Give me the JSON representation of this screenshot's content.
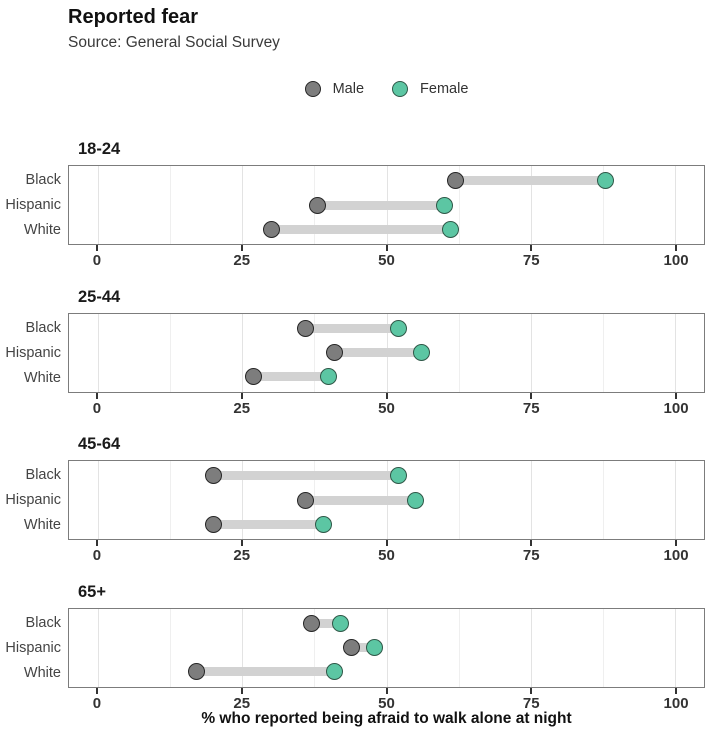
{
  "header": {
    "title": "Reported fear",
    "subtitle": "Source: General Social Survey"
  },
  "colors": {
    "male_fill": "#7d7d7d",
    "male_stroke": "#262626",
    "female_fill": "#5cc6a3",
    "female_stroke": "#2f5848",
    "connector": "#d2d2d2",
    "grid_major": "#e3e3e3",
    "grid_minor": "#efefef",
    "panel_border": "#7c7c7c"
  },
  "chart_data": {
    "type": "scatter",
    "variant": "dumbbell",
    "title": "Reported fear",
    "subtitle": "Source: General Social Survey",
    "xlabel": "% who reported being afraid to walk alone at night",
    "legend_position": "top-center",
    "grid": true,
    "xlim": [
      -5,
      105
    ],
    "x_ticks": [
      0,
      25,
      50,
      75,
      100
    ],
    "x_minor_ticks": [
      12.5,
      37.5,
      62.5,
      87.5
    ],
    "series_names": [
      "Male",
      "Female"
    ],
    "categories": [
      "Black",
      "Hispanic",
      "White"
    ],
    "facets": [
      {
        "label": "18-24",
        "male": [
          62,
          38,
          30
        ],
        "female": [
          88,
          60,
          61
        ]
      },
      {
        "label": "25-44",
        "male": [
          36,
          41,
          27
        ],
        "female": [
          52,
          56,
          40
        ]
      },
      {
        "label": "45-64",
        "male": [
          20,
          36,
          20
        ],
        "female": [
          52,
          55,
          39
        ]
      },
      {
        "label": "65+",
        "male": [
          37,
          44,
          17
        ],
        "female": [
          42,
          48,
          41
        ]
      }
    ]
  }
}
